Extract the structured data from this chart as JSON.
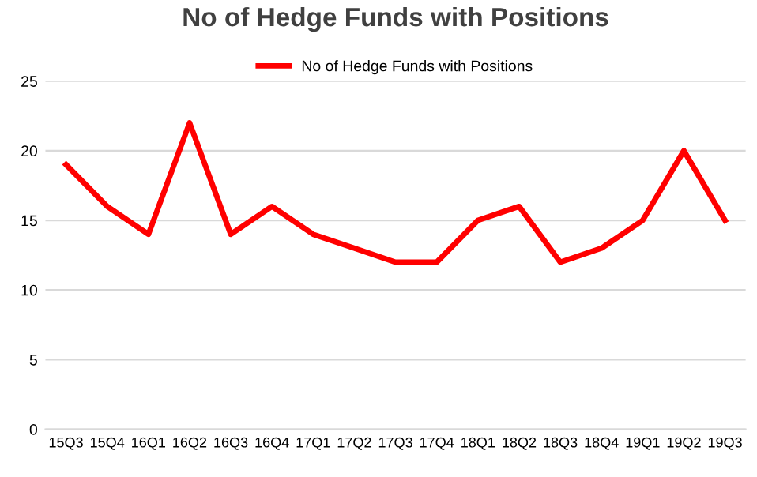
{
  "chart_data": {
    "type": "line",
    "title": "No of Hedge Funds with Positions",
    "categories": [
      "15Q3",
      "15Q4",
      "16Q1",
      "16Q2",
      "16Q3",
      "16Q4",
      "17Q1",
      "17Q2",
      "17Q3",
      "17Q4",
      "18Q1",
      "18Q2",
      "18Q3",
      "18Q4",
      "19Q1",
      "19Q2",
      "19Q3"
    ],
    "series": [
      {
        "name": "No of Hedge Funds with Positions",
        "color": "#ff0000",
        "values": [
          19,
          16,
          14,
          22,
          14,
          16,
          14,
          13,
          12,
          12,
          15,
          16,
          12,
          13,
          15,
          20,
          15
        ]
      }
    ],
    "ylim": [
      0,
      25
    ],
    "yticks": [
      0,
      5,
      10,
      15,
      20,
      25
    ],
    "grid": "y",
    "legend": "top",
    "marker": "none",
    "line_style": "solid"
  }
}
